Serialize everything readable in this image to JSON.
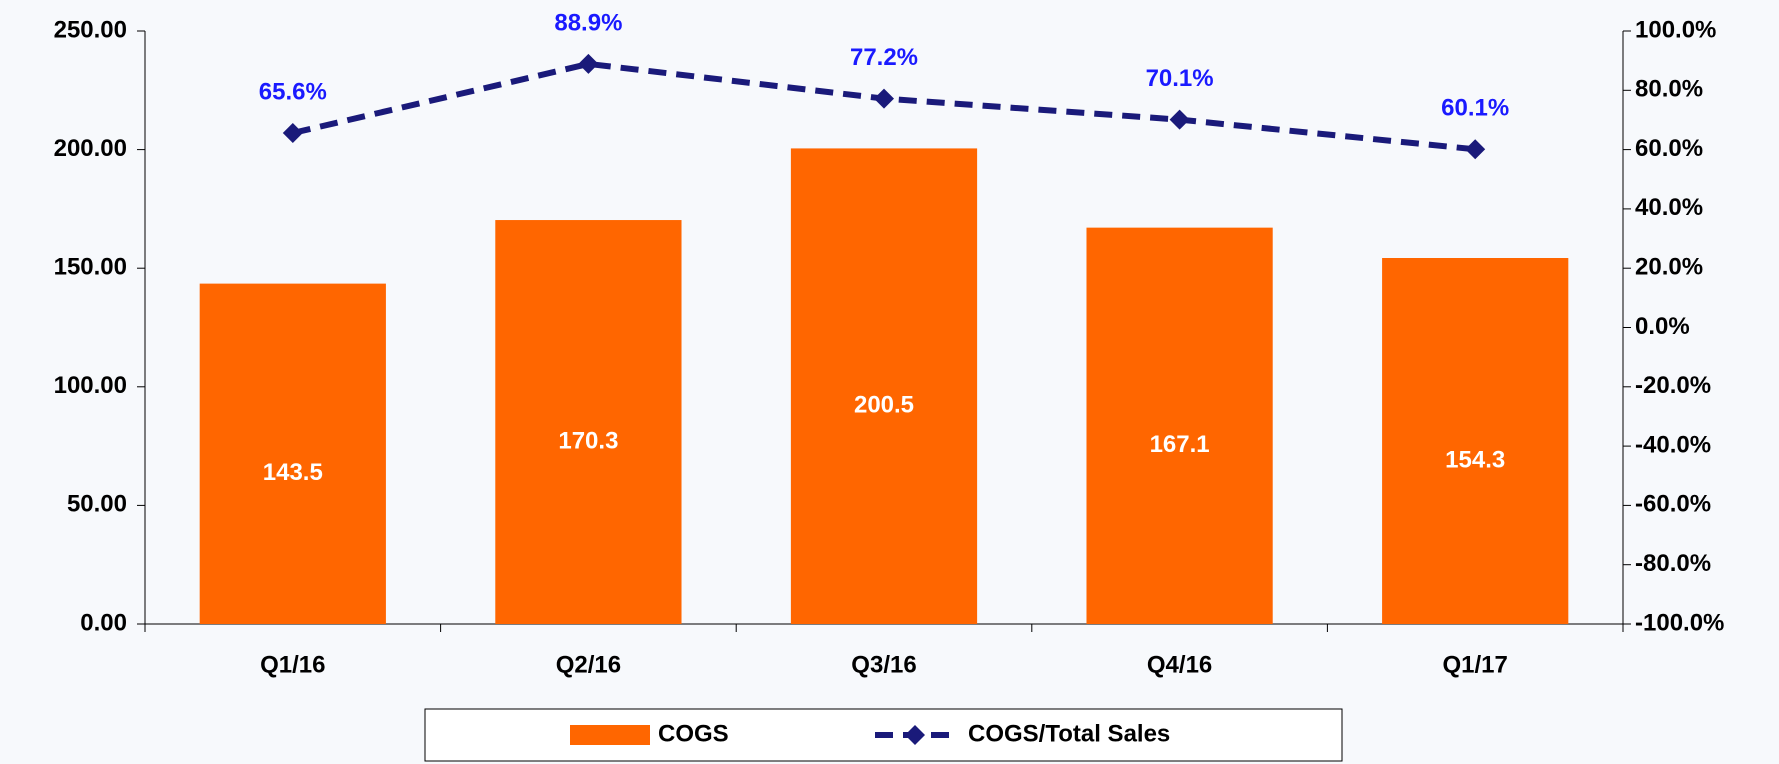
{
  "chart_data": {
    "type": "bar",
    "categories": [
      "Q1/16",
      "Q2/16",
      "Q3/16",
      "Q4/16",
      "Q1/17"
    ],
    "series": [
      {
        "name": "COGS",
        "type": "bar",
        "color": "#ff6600",
        "axis": "y",
        "values": [
          143.5,
          170.3,
          200.5,
          167.1,
          154.3
        ]
      },
      {
        "name": "COGS/Total Sales",
        "type": "line",
        "color": "#1a1a7a",
        "axis": "y2",
        "values": [
          65.6,
          88.9,
          77.2,
          70.1,
          60.1
        ],
        "value_labels": [
          "65.6%",
          "88.9%",
          "77.2%",
          "70.1%",
          "60.1%"
        ]
      }
    ],
    "ylim": [
      0,
      250
    ],
    "yticks": [
      {
        "value": 0,
        "label": "0.00"
      },
      {
        "value": 50,
        "label": "50.00"
      },
      {
        "value": 100,
        "label": "100.00"
      },
      {
        "value": 150,
        "label": "150.00"
      },
      {
        "value": 200,
        "label": "200.00"
      },
      {
        "value": 250,
        "label": "250.00"
      }
    ],
    "y2lim": [
      -100,
      100
    ],
    "y2ticks": [
      {
        "value": -100,
        "label": "-100.0%"
      },
      {
        "value": -80,
        "label": "-80.0%"
      },
      {
        "value": -60,
        "label": "-60.0%"
      },
      {
        "value": -40,
        "label": "-40.0%"
      },
      {
        "value": -20,
        "label": "-20.0%"
      },
      {
        "value": 0,
        "label": "0.0%"
      },
      {
        "value": 20,
        "label": "20.0%"
      },
      {
        "value": 40,
        "label": "40.0%"
      },
      {
        "value": 60,
        "label": "60.0%"
      },
      {
        "value": 80,
        "label": "80.0%"
      },
      {
        "value": 100,
        "label": "100.0%"
      }
    ],
    "grid": false,
    "legend": "bottom"
  }
}
